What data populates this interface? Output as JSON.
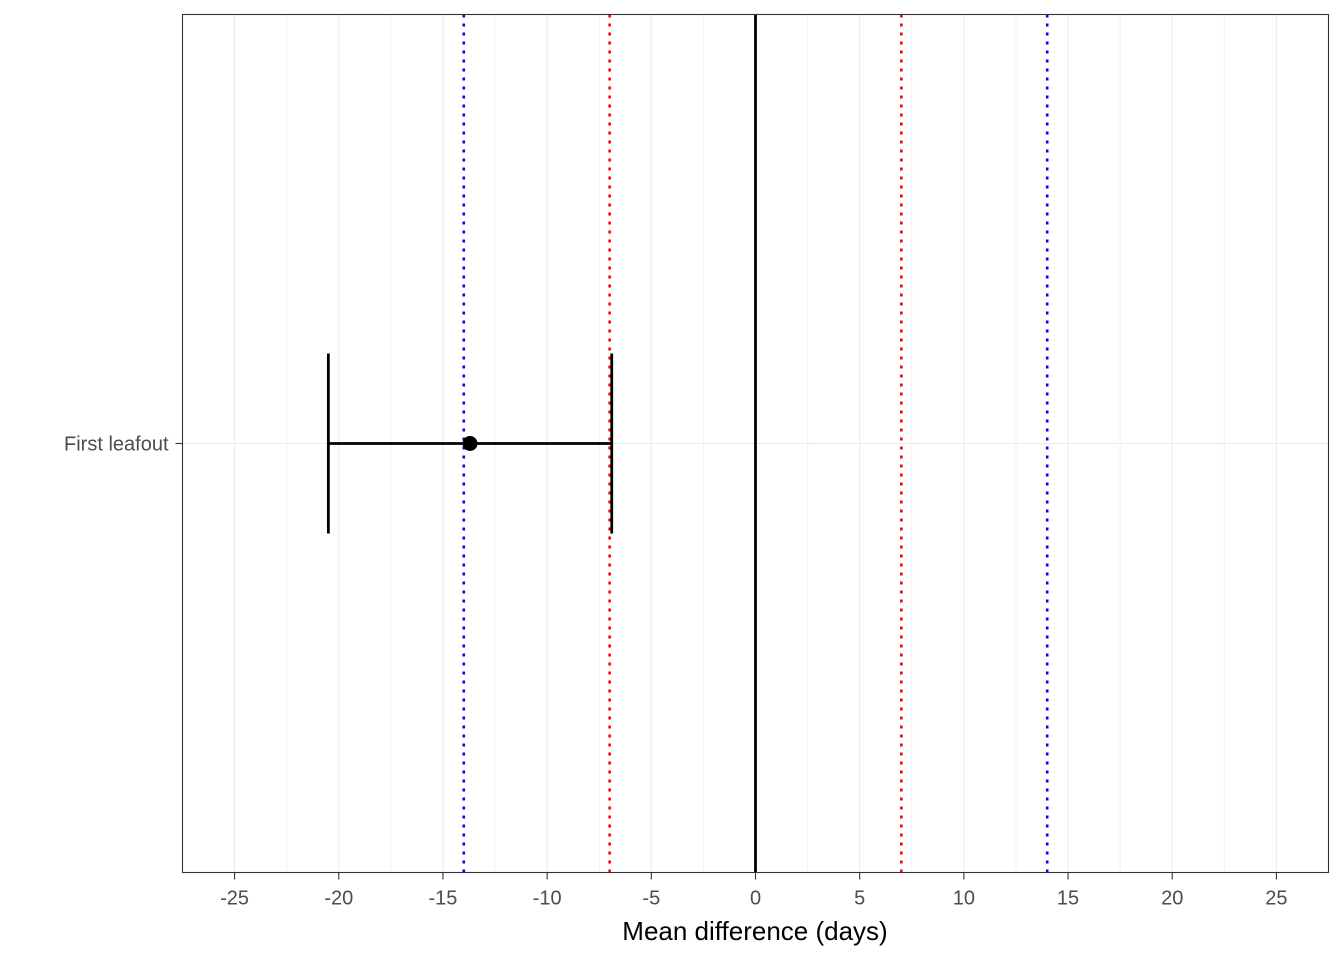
{
  "chart_data": {
    "type": "scatter",
    "subtype": "forest-plot",
    "xlabel": "Mean difference (days)",
    "ylabel": "",
    "xlim": [
      -27.5,
      27.5
    ],
    "x_ticks": [
      -25,
      -20,
      -15,
      -10,
      -5,
      0,
      5,
      10,
      15,
      20,
      25
    ],
    "x_tick_labels": [
      "-25",
      "-20",
      "-15",
      "-10",
      "-5",
      "0",
      "5",
      "10",
      "15",
      "20",
      "25"
    ],
    "categories": [
      "First leafout"
    ],
    "points": [
      {
        "category": "First leafout",
        "estimate": -13.7,
        "ci_lower": -20.5,
        "ci_upper": -6.9
      }
    ],
    "reference_lines": [
      {
        "x": 0,
        "style": "solid",
        "color": "#000000"
      },
      {
        "x": -7,
        "style": "dotted",
        "color": "#ff0000"
      },
      {
        "x": 7,
        "style": "dotted",
        "color": "#ff0000"
      },
      {
        "x": -14,
        "style": "dotted",
        "color": "#0000ff"
      },
      {
        "x": 14,
        "style": "dotted",
        "color": "#0000ff"
      }
    ],
    "grid": true,
    "legend": "none"
  }
}
